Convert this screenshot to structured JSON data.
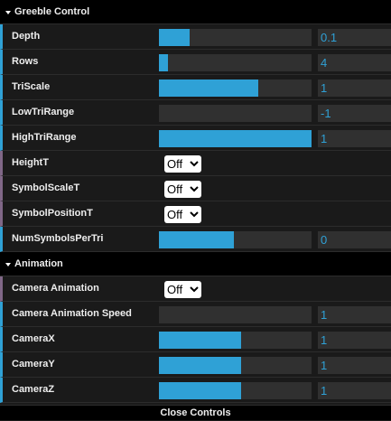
{
  "colors": {
    "number_accent": "#2fa1d6",
    "bool_accent": "#806787",
    "folder_accent": "#27b24a"
  },
  "greeble": {
    "title": "Greeble Control",
    "sliders_top": [
      {
        "name": "depth",
        "label": "Depth",
        "value": "0.1",
        "fill": 0.2
      },
      {
        "name": "rows",
        "label": "Rows",
        "value": "4",
        "fill": 0.06
      },
      {
        "name": "triscale",
        "label": "TriScale",
        "value": "1",
        "fill": 0.65
      },
      {
        "name": "lowtrirange",
        "label": "LowTriRange",
        "value": "-1",
        "fill": 0.0
      },
      {
        "name": "hightrirange",
        "label": "HighTriRange",
        "value": "1",
        "fill": 1.0
      }
    ],
    "toggles": [
      {
        "name": "heightt",
        "label": "HeightT",
        "value": "Off"
      },
      {
        "name": "symbolscalet",
        "label": "SymbolScaleT",
        "value": "Off"
      },
      {
        "name": "symbolpositiont",
        "label": "SymbolPositionT",
        "value": "Off"
      }
    ],
    "slider_bottom": {
      "name": "numsymbolspertri",
      "label": "NumSymbolsPerTri",
      "value": "0",
      "fill": 0.49
    }
  },
  "animation": {
    "title": "Animation",
    "toggle": {
      "name": "camera-animation",
      "label": "Camera Animation",
      "value": "Off"
    },
    "sliders": [
      {
        "name": "camera-animation-speed",
        "label": "Camera Animation Speed",
        "value": "1",
        "fill": 0.0
      },
      {
        "name": "camerax",
        "label": "CameraX",
        "value": "1",
        "fill": 0.54
      },
      {
        "name": "cameray",
        "label": "CameraY",
        "value": "1",
        "fill": 0.54
      },
      {
        "name": "cameraz",
        "label": "CameraZ",
        "value": "1",
        "fill": 0.54
      }
    ]
  },
  "close_label": "Close Controls"
}
